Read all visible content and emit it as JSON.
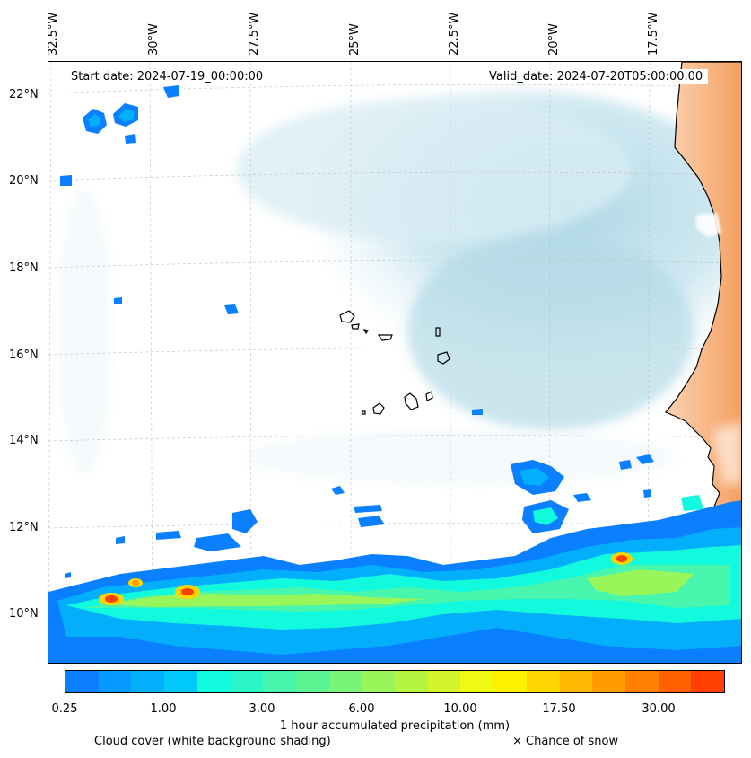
{
  "map": {
    "start_date": "Start date: 2024-07-19_00:00:00",
    "valid_date": "Valid_date: 2024-07-20T05:00:00.00",
    "lon_labels": [
      "32.5°W",
      "30°W",
      "27.5°W",
      "25°W",
      "22.5°W",
      "20°W",
      "17.5°W"
    ],
    "lat_labels": [
      "22°N",
      "20°N",
      "18°N",
      "16°N",
      "14°N",
      "12°N",
      "10°N"
    ]
  },
  "legend": {
    "colorbar_label": "1 hour accumulated precipitation (mm)",
    "tick_labels": [
      "0.25",
      "1.00",
      "3.00",
      "6.00",
      "10.00",
      "17.50",
      "30.00"
    ],
    "colors": [
      "#0a7fff",
      "#0699ff",
      "#03aefa",
      "#00c8fa",
      "#12fadd",
      "#2af5c6",
      "#48f5ad",
      "#5bf593",
      "#78f578",
      "#98f55a",
      "#b4f542",
      "#d4f52c",
      "#eefa14",
      "#fff000",
      "#ffd400",
      "#ffb800",
      "#ff9c00",
      "#ff7f00",
      "#ff6000",
      "#ff4000"
    ],
    "cloud_cover_label": "Cloud cover (white background shading)",
    "snow_label": "× Chance of snow"
  }
}
